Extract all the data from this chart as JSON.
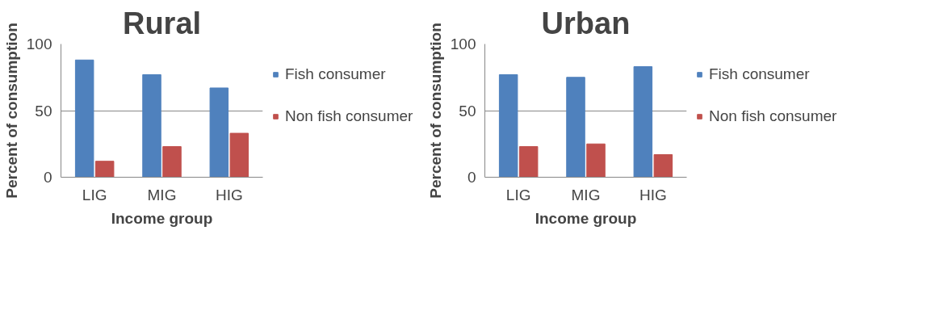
{
  "chart_data": [
    {
      "type": "bar",
      "title": "Rural",
      "xlabel": "Income group",
      "ylabel": "Percent of consumption",
      "categories": [
        "LIG",
        "MIG",
        "HIG"
      ],
      "series": [
        {
          "name": "Fish consumer",
          "color": "#4f81bd",
          "values": [
            88,
            77,
            67
          ]
        },
        {
          "name": "Non fish consumer",
          "color": "#c0504d",
          "values": [
            12,
            23,
            33
          ]
        }
      ],
      "ylim": [
        0,
        100
      ],
      "yticks": [
        0,
        50,
        100
      ],
      "grid": "y",
      "legend": "right"
    },
    {
      "type": "bar",
      "title": "Urban",
      "xlabel": "Income group",
      "ylabel": "Percent of consumption",
      "categories": [
        "LIG",
        "MIG",
        "HIG"
      ],
      "series": [
        {
          "name": "Fish consumer",
          "color": "#4f81bd",
          "values": [
            77,
            75,
            83
          ]
        },
        {
          "name": "Non fish consumer",
          "color": "#c0504d",
          "values": [
            23,
            25,
            17
          ]
        }
      ],
      "ylim": [
        0,
        100
      ],
      "yticks": [
        0,
        50,
        100
      ],
      "grid": "y",
      "legend": "right"
    }
  ]
}
